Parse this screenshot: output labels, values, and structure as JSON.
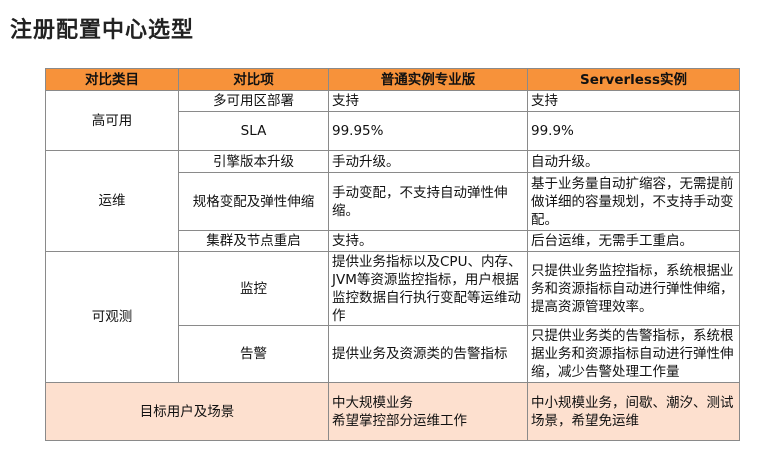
{
  "title": "注册配置中心选型",
  "header": [
    "对比类目",
    "对比项",
    "普通实例专业版",
    "Serverless实例"
  ],
  "groups": [
    {
      "category": "高可用",
      "rows": [
        {
          "item": "多可用区部署",
          "pro": "支持",
          "serverless": "支持"
        },
        {
          "item": "SLA",
          "pro": "99.95%",
          "serverless": "99.9%"
        }
      ]
    },
    {
      "category": "运维",
      "rows": [
        {
          "item": "引擎版本升级",
          "pro": "手动升级。",
          "serverless": "自动升级。"
        },
        {
          "item": "规格变配及弹性伸缩",
          "pro": "手动变配，不支持自动弹性伸缩。",
          "serverless": "基于业务量自动扩缩容，无需提前做详细的容量规划，不支持手动变配。"
        },
        {
          "item": "集群及节点重启",
          "pro": "支持。",
          "serverless": "后台运维，无需手工重启。"
        }
      ]
    },
    {
      "category": "可观测",
      "rows": [
        {
          "item": "监控",
          "pro": "提供业务指标以及CPU、内存、JVM等资源监控指标，用户根据监控数据自行执行变配等运维动作",
          "serverless": "只提供业务监控指标，系统根据业务和资源指标自动进行弹性伸缩，提高资源管理效率。"
        },
        {
          "item": "告警",
          "pro": "提供业务及资源类的告警指标",
          "serverless": "只提供业务类的告警指标，系统根据业务和资源指标自动进行弹性伸缩，减少告警处理工作量"
        }
      ]
    }
  ],
  "target": {
    "label": "目标用户及场景",
    "pro_line1": "中大规模业务",
    "pro_line2": "希望掌控部分运维工作",
    "serverless": "中小规模业务，间歇、潮汐、测试场景，希望免运维"
  },
  "colors": {
    "header_bg": "#f7923a",
    "last_row_bg": "#fde0cf"
  }
}
